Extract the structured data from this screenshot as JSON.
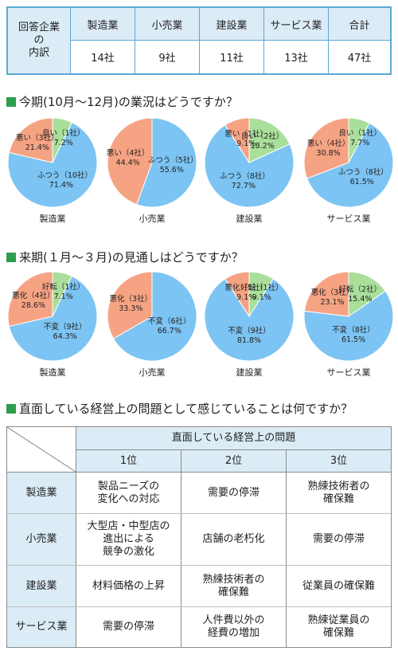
{
  "summary_table": {
    "header": "回答企業の内訳",
    "header_lines": [
      "回答企業",
      "の",
      "内訳"
    ],
    "columns": [
      "製造業",
      "小売業",
      "建設業",
      "サービス業",
      "合計"
    ],
    "values": [
      "14社",
      "9社",
      "11社",
      "13社",
      "47社"
    ],
    "border_color": "#5aa8d6",
    "header_bg": "#dcecf7"
  },
  "section1": {
    "title": "今期(10月～12月)の業況はどうですか？"
  },
  "section2": {
    "title": "来期(１月～３月)の見通しはどうですか？"
  },
  "section3": {
    "title": "直面している経営上の問題として感じていることは何ですか？"
  },
  "colors": {
    "good": "#a9df9a",
    "normal": "#7cc4f3",
    "bad": "#f6a384",
    "square": "#2e9e4e"
  },
  "chart_data": [
    {
      "type": "pie",
      "group": "今期",
      "title": "製造業",
      "slices": [
        {
          "label": "良い（1社）",
          "value": 7.2,
          "display": "7.2%"
        },
        {
          "label": "ふつう（10社）",
          "value": 71.4,
          "display": "71.4%"
        },
        {
          "label": "悪い（3社）",
          "value": 21.4,
          "display": "21.4%"
        }
      ]
    },
    {
      "type": "pie",
      "group": "今期",
      "title": "小売業",
      "slices": [
        {
          "label": "ふつう（5社）",
          "value": 55.6,
          "display": "55.6%"
        },
        {
          "label": "悪い（4社）",
          "value": 44.4,
          "display": "44.4%"
        }
      ]
    },
    {
      "type": "pie",
      "group": "今期",
      "title": "建設業",
      "slices": [
        {
          "label": "良い（2社）",
          "value": 18.2,
          "display": "18.2%"
        },
        {
          "label": "ふつう（8社）",
          "value": 72.7,
          "display": "72.7%"
        },
        {
          "label": "悪い（1社）",
          "value": 9.1,
          "display": "9.1%"
        }
      ]
    },
    {
      "type": "pie",
      "group": "今期",
      "title": "サービス業",
      "slices": [
        {
          "label": "良い（1社）",
          "value": 7.7,
          "display": "7.7%"
        },
        {
          "label": "ふつう（8社）",
          "value": 61.5,
          "display": "61.5%"
        },
        {
          "label": "悪い（4社）",
          "value": 30.8,
          "display": "30.8%"
        }
      ]
    },
    {
      "type": "pie",
      "group": "来期",
      "title": "製造業",
      "slices": [
        {
          "label": "好転（1社）",
          "value": 7.1,
          "display": "7.1%"
        },
        {
          "label": "不変（9社）",
          "value": 64.3,
          "display": "64.3%"
        },
        {
          "label": "悪化（4社）",
          "value": 28.6,
          "display": "28.6%"
        }
      ]
    },
    {
      "type": "pie",
      "group": "来期",
      "title": "小売業",
      "slices": [
        {
          "label": "不変（6社）",
          "value": 66.7,
          "display": "66.7%"
        },
        {
          "label": "悪化（3社）",
          "value": 33.3,
          "display": "33.3%"
        }
      ]
    },
    {
      "type": "pie",
      "group": "来期",
      "title": "建設業",
      "slices": [
        {
          "label": "好転（1社）",
          "value": 9.1,
          "display": "9.1%"
        },
        {
          "label": "不変（9社）",
          "value": 81.8,
          "display": "81.8%"
        },
        {
          "label": "悪化（1社）",
          "value": 9.1,
          "display": "9.1%"
        }
      ]
    },
    {
      "type": "pie",
      "group": "来期",
      "title": "サービス業",
      "slices": [
        {
          "label": "好転（2社）",
          "value": 15.4,
          "display": "15.4%"
        },
        {
          "label": "不変（8社）",
          "value": 61.5,
          "display": "61.5%"
        },
        {
          "label": "悪化（3社）",
          "value": 23.1,
          "display": "23.1%"
        }
      ]
    }
  ],
  "problems_table": {
    "header": "直面している経営上の問題",
    "ranks": [
      "1位",
      "2位",
      "3位"
    ],
    "rows": [
      {
        "industry": "製造業",
        "cells": [
          [
            "製品ニーズの",
            "変化への対応"
          ],
          [
            "需要の停滞"
          ],
          [
            "熟練技術者の",
            "確保難"
          ]
        ]
      },
      {
        "industry": "小売業",
        "cells": [
          [
            "大型店・中型店の",
            "進出による",
            "競争の激化"
          ],
          [
            "店舗の老朽化"
          ],
          [
            "需要の停滞"
          ]
        ]
      },
      {
        "industry": "建設業",
        "cells": [
          [
            "材料価格の上昇"
          ],
          [
            "熟練技術者の",
            "確保難"
          ],
          [
            "従業員の確保難"
          ]
        ]
      },
      {
        "industry": "サービス業",
        "cells": [
          [
            "需要の停滞"
          ],
          [
            "人件費以外の",
            "経費の増加"
          ],
          [
            "熟練従業員の",
            "確保難"
          ]
        ]
      }
    ]
  }
}
